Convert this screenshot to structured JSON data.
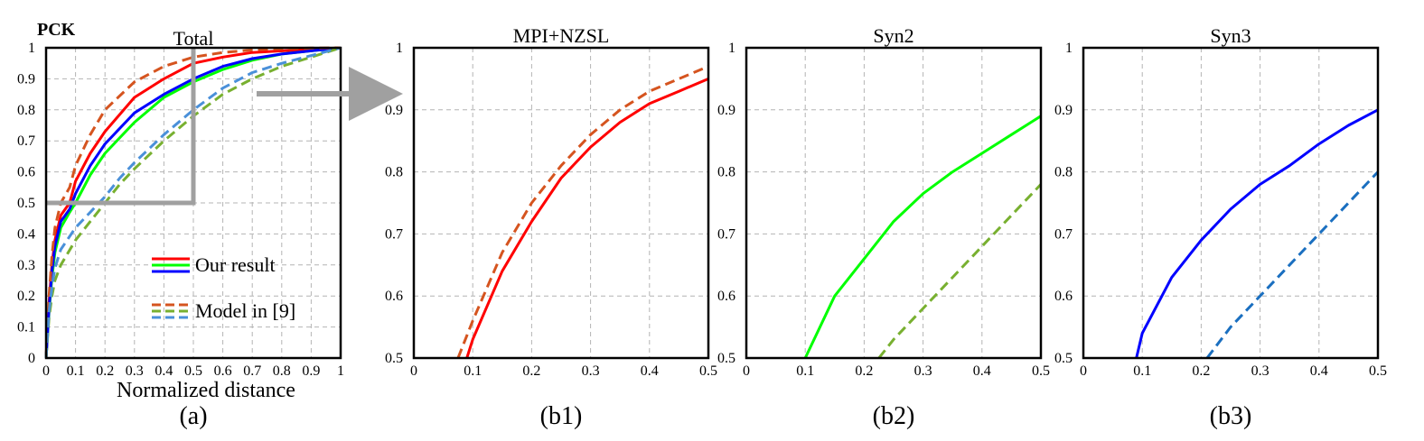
{
  "chart_data": [
    {
      "id": "a",
      "type": "line",
      "title": "Total",
      "ylabel": "PCK",
      "xlabel": "Normalized distance",
      "caption": "(a)",
      "xlim": [
        0,
        1
      ],
      "ylim": [
        0,
        1
      ],
      "xticks": [
        "0",
        "0.1",
        "0.2",
        "0.3",
        "0.4",
        "0.5",
        "0.6",
        "0.7",
        "0.8",
        "0.9",
        "1"
      ],
      "yticks": [
        "0",
        "0.1",
        "0.2",
        "0.3",
        "0.4",
        "0.5",
        "0.6",
        "0.7",
        "0.8",
        "0.9",
        "1"
      ],
      "grid": true,
      "legend": {
        "position": "bottom-right",
        "entries": [
          {
            "label": "Our result",
            "colors": [
              "#ff0000",
              "#00ff00",
              "#0000ff"
            ],
            "dash": false
          },
          {
            "label": "Model in [9]",
            "colors": [
              "#d5541f",
              "#78b030",
              "#4a90d9"
            ],
            "dash": true
          }
        ]
      },
      "zoom_box": {
        "x": [
          0,
          0.5
        ],
        "y": [
          0.5,
          1
        ]
      },
      "series": [
        {
          "color": "#ff0000",
          "dash": false,
          "x": [
            0,
            0.01,
            0.02,
            0.03,
            0.05,
            0.08,
            0.1,
            0.15,
            0.2,
            0.3,
            0.4,
            0.5,
            0.6,
            0.7,
            0.8,
            0.9,
            1.0
          ],
          "y": [
            0,
            0.18,
            0.3,
            0.38,
            0.46,
            0.5,
            0.57,
            0.66,
            0.73,
            0.84,
            0.9,
            0.95,
            0.97,
            0.985,
            0.99,
            0.995,
            1.0
          ]
        },
        {
          "color": "#00ff00",
          "dash": false,
          "x": [
            0,
            0.01,
            0.02,
            0.03,
            0.05,
            0.08,
            0.1,
            0.15,
            0.2,
            0.3,
            0.4,
            0.5,
            0.6,
            0.7,
            0.8,
            0.9,
            1.0
          ],
          "y": [
            0,
            0.15,
            0.26,
            0.34,
            0.42,
            0.47,
            0.5,
            0.59,
            0.66,
            0.76,
            0.84,
            0.89,
            0.93,
            0.96,
            0.98,
            0.99,
            1.0
          ]
        },
        {
          "color": "#0000ff",
          "dash": false,
          "x": [
            0,
            0.01,
            0.02,
            0.03,
            0.05,
            0.08,
            0.1,
            0.15,
            0.2,
            0.3,
            0.4,
            0.5,
            0.6,
            0.7,
            0.8,
            0.9,
            1.0
          ],
          "y": [
            0,
            0.16,
            0.28,
            0.36,
            0.44,
            0.48,
            0.53,
            0.62,
            0.69,
            0.79,
            0.85,
            0.9,
            0.94,
            0.965,
            0.98,
            0.99,
            1.0
          ]
        },
        {
          "color": "#d5541f",
          "dash": true,
          "x": [
            0,
            0.01,
            0.02,
            0.03,
            0.05,
            0.08,
            0.1,
            0.15,
            0.2,
            0.3,
            0.4,
            0.5,
            0.6,
            0.7,
            0.8,
            0.9,
            1.0
          ],
          "y": [
            0,
            0.2,
            0.33,
            0.42,
            0.5,
            0.55,
            0.62,
            0.72,
            0.8,
            0.89,
            0.94,
            0.97,
            0.985,
            0.993,
            0.997,
            0.999,
            1.0
          ]
        },
        {
          "color": "#78b030",
          "dash": true,
          "x": [
            0,
            0.01,
            0.02,
            0.03,
            0.05,
            0.1,
            0.15,
            0.2,
            0.25,
            0.3,
            0.4,
            0.5,
            0.6,
            0.7,
            0.8,
            0.9,
            1.0
          ],
          "y": [
            0,
            0.13,
            0.2,
            0.25,
            0.3,
            0.38,
            0.44,
            0.5,
            0.56,
            0.61,
            0.7,
            0.78,
            0.85,
            0.9,
            0.94,
            0.97,
            1.0
          ]
        },
        {
          "color": "#4a90d9",
          "dash": true,
          "x": [
            0,
            0.01,
            0.02,
            0.03,
            0.05,
            0.1,
            0.15,
            0.2,
            0.25,
            0.3,
            0.4,
            0.5,
            0.6,
            0.7,
            0.8,
            0.9,
            1.0
          ],
          "y": [
            0,
            0.15,
            0.23,
            0.29,
            0.35,
            0.42,
            0.47,
            0.52,
            0.58,
            0.63,
            0.72,
            0.8,
            0.87,
            0.92,
            0.95,
            0.975,
            1.0
          ]
        }
      ]
    },
    {
      "id": "b1",
      "type": "line",
      "title": "MPI+NZSL",
      "caption": "(b1)",
      "xlim": [
        0,
        0.5
      ],
      "ylim": [
        0.5,
        1
      ],
      "xticks": [
        "0",
        "0.1",
        "0.2",
        "0.3",
        "0.4",
        "0.5"
      ],
      "yticks": [
        "0.5",
        "0.6",
        "0.7",
        "0.8",
        "0.9",
        "1"
      ],
      "grid": true,
      "series": [
        {
          "color": "#ff0000",
          "dash": false,
          "x": [
            0.09,
            0.1,
            0.15,
            0.2,
            0.25,
            0.3,
            0.35,
            0.4,
            0.45,
            0.5
          ],
          "y": [
            0.5,
            0.53,
            0.64,
            0.72,
            0.79,
            0.84,
            0.88,
            0.91,
            0.93,
            0.95
          ]
        },
        {
          "color": "#d5541f",
          "dash": true,
          "x": [
            0.075,
            0.1,
            0.15,
            0.2,
            0.25,
            0.3,
            0.35,
            0.4,
            0.45,
            0.5
          ],
          "y": [
            0.5,
            0.56,
            0.67,
            0.75,
            0.81,
            0.86,
            0.9,
            0.93,
            0.95,
            0.97
          ]
        }
      ]
    },
    {
      "id": "b2",
      "type": "line",
      "title": "Syn2",
      "caption": "(b2)",
      "xlim": [
        0,
        0.5
      ],
      "ylim": [
        0.5,
        1
      ],
      "xticks": [
        "0",
        "0.1",
        "0.2",
        "0.3",
        "0.4",
        "0.5"
      ],
      "yticks": [
        "0.5",
        "0.6",
        "0.7",
        "0.8",
        "0.9",
        "1"
      ],
      "grid": true,
      "series": [
        {
          "color": "#00ff00",
          "dash": false,
          "x": [
            0.1,
            0.15,
            0.2,
            0.25,
            0.3,
            0.35,
            0.4,
            0.45,
            0.5
          ],
          "y": [
            0.5,
            0.6,
            0.66,
            0.72,
            0.765,
            0.8,
            0.83,
            0.86,
            0.89
          ]
        },
        {
          "color": "#78b030",
          "dash": true,
          "x": [
            0.225,
            0.25,
            0.3,
            0.35,
            0.4,
            0.45,
            0.5
          ],
          "y": [
            0.5,
            0.53,
            0.58,
            0.63,
            0.68,
            0.73,
            0.78
          ]
        }
      ]
    },
    {
      "id": "b3",
      "type": "line",
      "title": "Syn3",
      "caption": "(b3)",
      "xlim": [
        0,
        0.5
      ],
      "ylim": [
        0.5,
        1
      ],
      "xticks": [
        "0",
        "0.1",
        "0.2",
        "0.3",
        "0.4",
        "0.5"
      ],
      "yticks": [
        "0.5",
        "0.6",
        "0.7",
        "0.8",
        "0.9",
        "1"
      ],
      "grid": true,
      "series": [
        {
          "color": "#0000ff",
          "dash": false,
          "x": [
            0.09,
            0.1,
            0.15,
            0.2,
            0.25,
            0.3,
            0.35,
            0.4,
            0.45,
            0.5
          ],
          "y": [
            0.5,
            0.54,
            0.63,
            0.69,
            0.74,
            0.78,
            0.81,
            0.845,
            0.875,
            0.9
          ]
        },
        {
          "color": "#1a6fc0",
          "dash": true,
          "x": [
            0.21,
            0.25,
            0.3,
            0.35,
            0.4,
            0.45,
            0.5
          ],
          "y": [
            0.5,
            0.55,
            0.6,
            0.65,
            0.7,
            0.75,
            0.8
          ]
        }
      ]
    }
  ]
}
